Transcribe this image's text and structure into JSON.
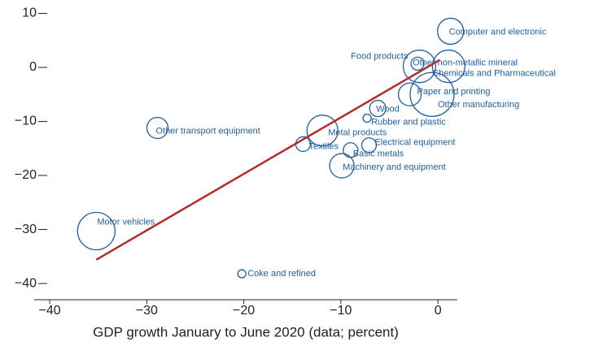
{
  "chart_data": {
    "type": "bubble",
    "xlabel": "GDP growth January to June 2020 (data; percent)",
    "xlim": [
      -41.6,
      2.0
    ],
    "ylim": [
      -43.0,
      10.0
    ],
    "xticks": [
      {
        "value": -40,
        "label": "−40"
      },
      {
        "value": -30,
        "label": "−30"
      },
      {
        "value": -20,
        "label": "−20"
      },
      {
        "value": -10,
        "label": "−10"
      },
      0
    ],
    "yticks": [
      10,
      0,
      {
        "value": -10,
        "label": "−10"
      },
      {
        "value": -20,
        "label": "−20"
      },
      {
        "value": -30,
        "label": "−30"
      },
      {
        "value": -40,
        "label": "−40"
      }
    ],
    "point_labels": [
      "Computer and electronic",
      "Food products",
      "Other non-metallic mineral",
      "Chemicals and Pharmaceutical",
      "Paper and printing",
      "Other manufacturing",
      "Wood",
      "Rubber and plastic",
      "Other transport equipment",
      "Metal products",
      "Textiles",
      "Electrical equipment",
      "Basic metals",
      "Machinery and equipment",
      "Motor vehicles",
      "Coke and refined"
    ],
    "series": [
      {
        "color": "#1d5f9e",
        "x": [
          1.3,
          -1.9,
          -2.1,
          1.1,
          -2.9,
          -0.6,
          -6.2,
          -7.3,
          -28.9,
          -11.9,
          -13.9,
          -7.1,
          -9.0,
          -9.9,
          -35.2,
          -20.2
        ],
        "values": [
          6.7,
          0.2,
          0.7,
          0.2,
          -5.0,
          -5.0,
          -7.6,
          -9.4,
          -11.2,
          -11.7,
          -14.2,
          -14.4,
          -15.3,
          -18.2,
          -30.3,
          -38.2
        ],
        "sizes": [
          16,
          20,
          8,
          20,
          14,
          27,
          10,
          5,
          13,
          19,
          9,
          9,
          9,
          15,
          23,
          5
        ]
      }
    ],
    "fit_line": {
      "color": "#b52a2a",
      "x": [
        -35.2,
        0.2
      ],
      "y": [
        -35.6,
        1.4
      ]
    }
  }
}
